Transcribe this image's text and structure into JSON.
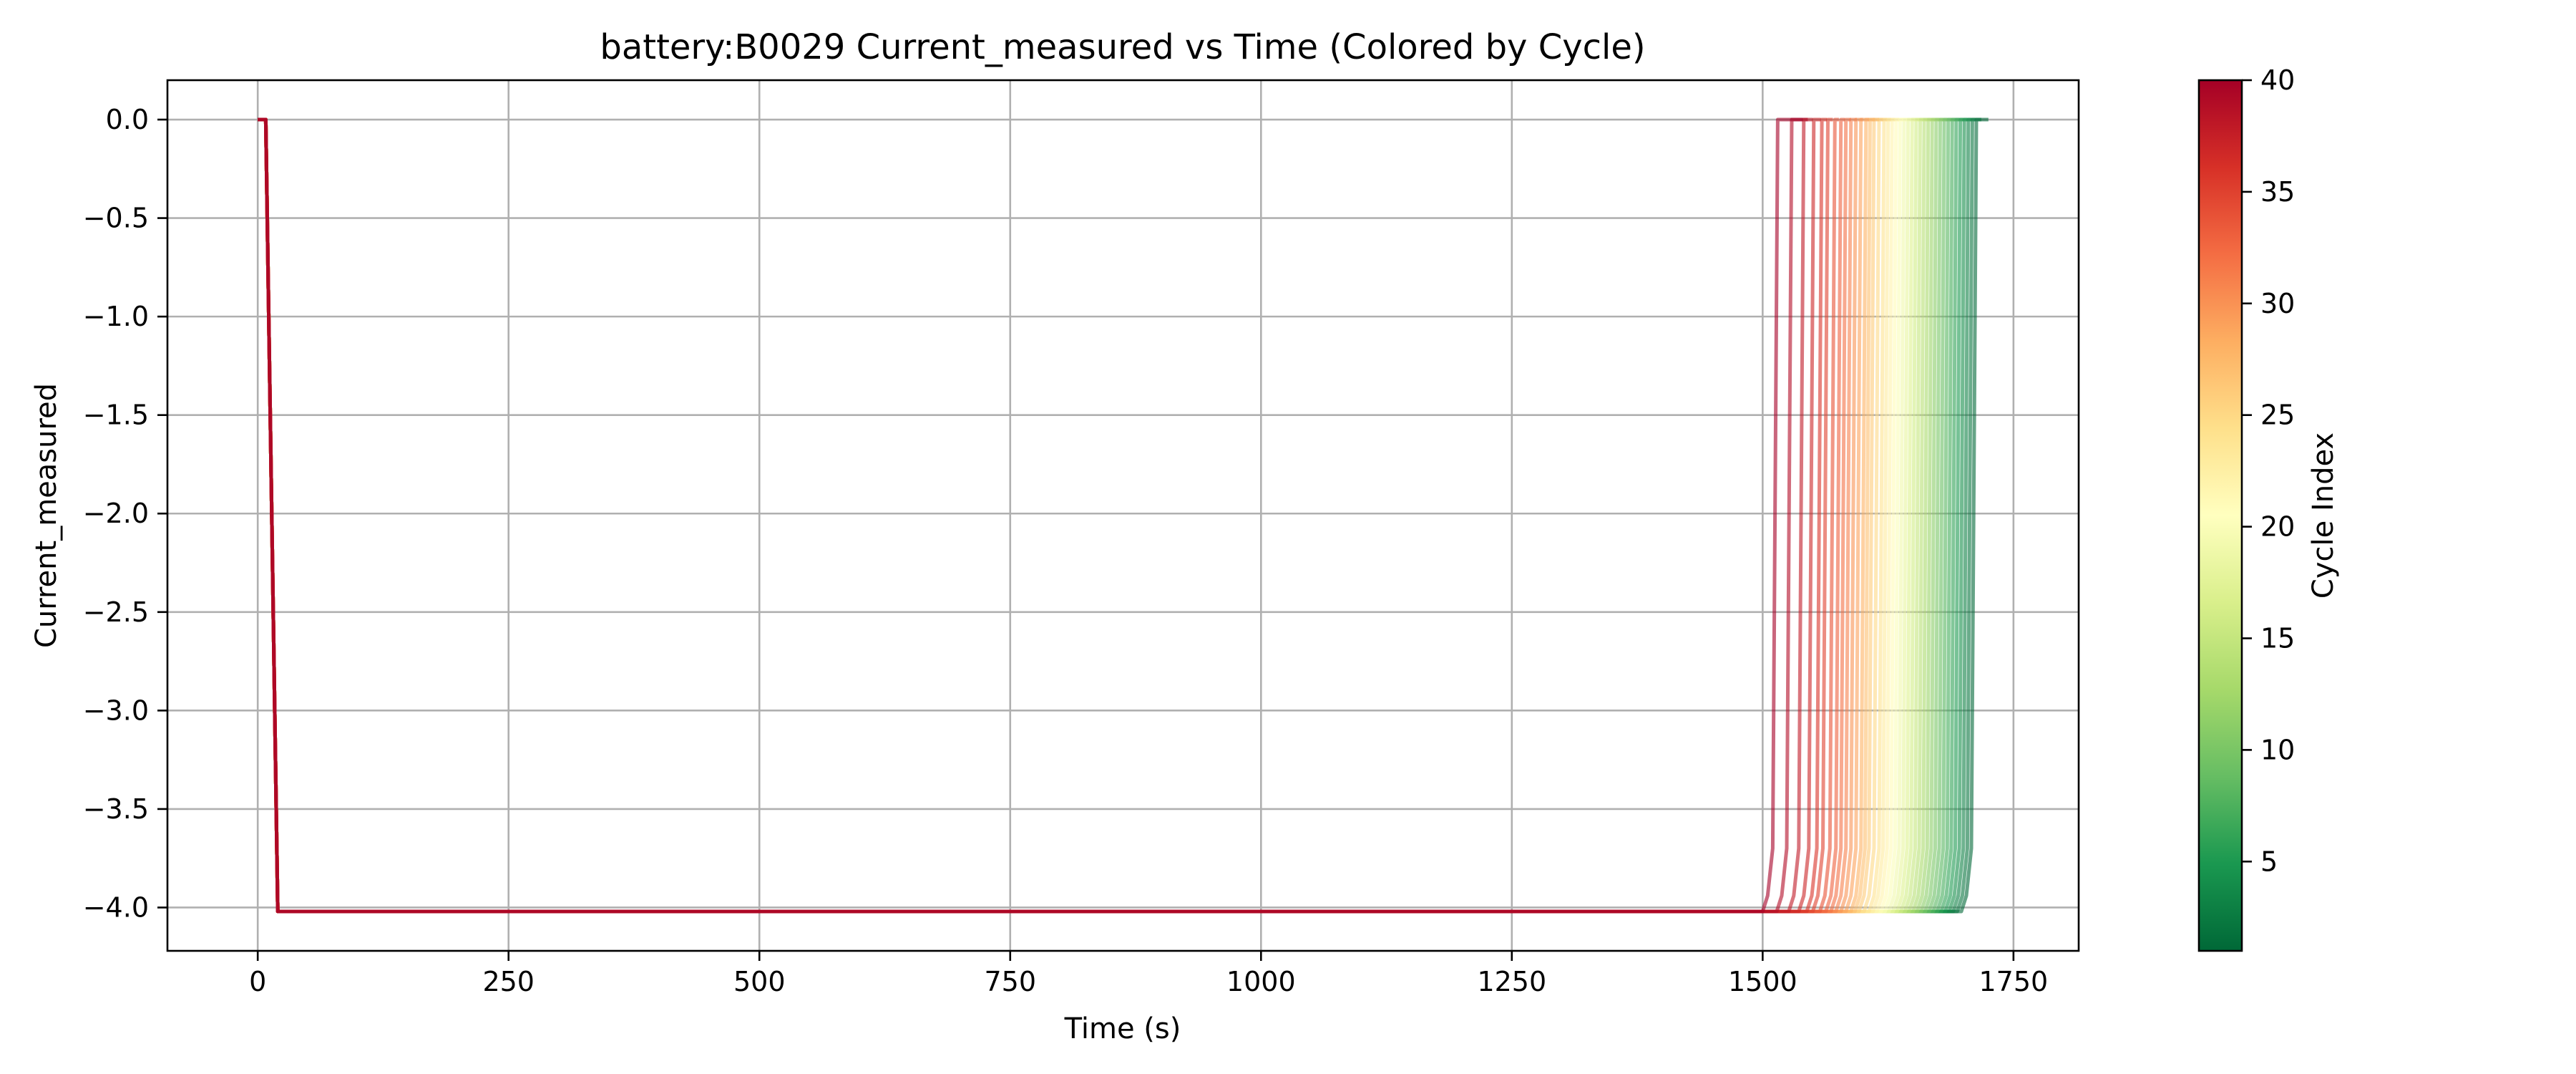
{
  "chart_data": {
    "type": "line",
    "title": "battery:B0029 Current_measured vs Time (Colored by Cycle)",
    "xlabel": "Time (s)",
    "ylabel": "Current_measured",
    "xlim": [
      -90,
      1815
    ],
    "ylim": [
      -4.22,
      0.2
    ],
    "xticks": [
      0,
      250,
      500,
      750,
      1000,
      1250,
      1500,
      1750
    ],
    "yticks": [
      0.0,
      -0.5,
      -1.0,
      -1.5,
      -2.0,
      -2.5,
      -3.0,
      -3.5,
      -4.0
    ],
    "xtick_labels": [
      "0",
      "250",
      "500",
      "750",
      "1000",
      "1250",
      "1500",
      "1750"
    ],
    "ytick_labels": [
      "0.0",
      "−0.5",
      "−1.0",
      "−1.5",
      "−2.0",
      "−2.5",
      "−3.0",
      "−3.5",
      "−4.0"
    ],
    "grid": true,
    "colormap": "RdYlGn_r",
    "line_alpha": 0.6,
    "colorbar": {
      "label": "Cycle Index",
      "range": [
        1,
        40
      ],
      "ticks": [
        5,
        10,
        15,
        20,
        25,
        30,
        35,
        40
      ],
      "tick_labels": [
        "5",
        "10",
        "15",
        "20",
        "25",
        "30",
        "35",
        "40"
      ]
    },
    "cycle_profile": {
      "rest_current": 0.0,
      "discharge_current": -4.02,
      "start_time": 0,
      "drop_start_time": 8,
      "drop_end_time": 20
    },
    "series": [
      {
        "cycle": 1,
        "end_time": 1698,
        "final_time": 1725
      },
      {
        "cycle": 2,
        "end_time": 1694,
        "final_time": 1718
      },
      {
        "cycle": 3,
        "end_time": 1690,
        "final_time": 1712
      },
      {
        "cycle": 4,
        "end_time": 1686,
        "final_time": 1708
      },
      {
        "cycle": 5,
        "end_time": 1682,
        "final_time": 1704
      },
      {
        "cycle": 6,
        "end_time": 1678,
        "final_time": 1700
      },
      {
        "cycle": 7,
        "end_time": 1674,
        "final_time": 1696
      },
      {
        "cycle": 8,
        "end_time": 1670,
        "final_time": 1692
      },
      {
        "cycle": 9,
        "end_time": 1666,
        "final_time": 1688
      },
      {
        "cycle": 10,
        "end_time": 1662,
        "final_time": 1684
      },
      {
        "cycle": 11,
        "end_time": 1658,
        "final_time": 1680
      },
      {
        "cycle": 12,
        "end_time": 1654,
        "final_time": 1676
      },
      {
        "cycle": 13,
        "end_time": 1650,
        "final_time": 1672
      },
      {
        "cycle": 14,
        "end_time": 1646,
        "final_time": 1668
      },
      {
        "cycle": 15,
        "end_time": 1642,
        "final_time": 1664
      },
      {
        "cycle": 16,
        "end_time": 1638,
        "final_time": 1660
      },
      {
        "cycle": 17,
        "end_time": 1634,
        "final_time": 1656
      },
      {
        "cycle": 18,
        "end_time": 1630,
        "final_time": 1652
      },
      {
        "cycle": 19,
        "end_time": 1626,
        "final_time": 1648
      },
      {
        "cycle": 20,
        "end_time": 1622,
        "final_time": 1644
      },
      {
        "cycle": 21,
        "end_time": 1618,
        "final_time": 1640
      },
      {
        "cycle": 22,
        "end_time": 1614,
        "final_time": 1636
      },
      {
        "cycle": 23,
        "end_time": 1610,
        "final_time": 1632
      },
      {
        "cycle": 24,
        "end_time": 1606,
        "final_time": 1628
      },
      {
        "cycle": 25,
        "end_time": 1601,
        "final_time": 1624
      },
      {
        "cycle": 26,
        "end_time": 1596,
        "final_time": 1620
      },
      {
        "cycle": 27,
        "end_time": 1592,
        "final_time": 1616
      },
      {
        "cycle": 28,
        "end_time": 1588,
        "final_time": 1612
      },
      {
        "cycle": 29,
        "end_time": 1583,
        "final_time": 1606
      },
      {
        "cycle": 30,
        "end_time": 1578,
        "final_time": 1600
      },
      {
        "cycle": 31,
        "end_time": 1573,
        "final_time": 1594
      },
      {
        "cycle": 32,
        "end_time": 1568,
        "final_time": 1588
      },
      {
        "cycle": 33,
        "end_time": 1563,
        "final_time": 1582
      },
      {
        "cycle": 34,
        "end_time": 1557,
        "final_time": 1576
      },
      {
        "cycle": 35,
        "end_time": 1550,
        "final_time": 1570
      },
      {
        "cycle": 36,
        "end_time": 1544,
        "final_time": 1564
      },
      {
        "cycle": 37,
        "end_time": 1536,
        "final_time": 1558
      },
      {
        "cycle": 38,
        "end_time": 1526,
        "final_time": 1550
      },
      {
        "cycle": 39,
        "end_time": 1514,
        "final_time": 1545
      },
      {
        "cycle": 40,
        "end_time": 1500,
        "final_time": 1540
      }
    ]
  }
}
